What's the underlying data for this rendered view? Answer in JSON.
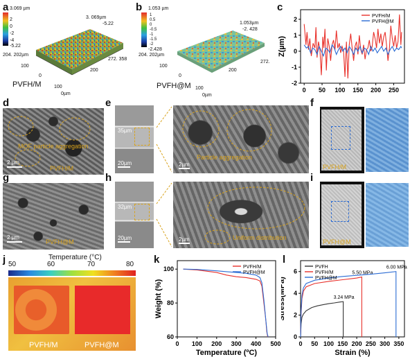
{
  "panels": {
    "a": {
      "letter": "a",
      "label": "PVFH/M",
      "cb_max": "3.069 µm",
      "cb_ticks": [
        "2",
        "0",
        "-2",
        "-4"
      ],
      "cb_min": "-5.22",
      "peak_label": "3. 069µm",
      "peak_min": "-5.22",
      "y_extent": "204. 202µm",
      "x_extent": "272. 358",
      "tick_100": "100",
      "tick_200": "200",
      "tick_0": "0",
      "unit_0": "0µm"
    },
    "b": {
      "letter": "b",
      "label": "PVFH@M",
      "cb_max": "1.053 µm",
      "cb_ticks": [
        "1",
        "0.5",
        "0",
        "-0.5",
        "-1",
        "-1.5",
        "-2"
      ],
      "cb_min": "-2.428",
      "peak_label": "1.053µm",
      "peak_min": "-2. 428",
      "y_extent": "204. 202µm",
      "x_extent": "272.",
      "tick_100": "100",
      "tick_200": "200",
      "tick_0": "0",
      "unit_0": "0µm"
    },
    "c": {
      "letter": "c"
    },
    "d": {
      "letter": "d",
      "annot": "MOF particle aggregation",
      "scale": "2 µm",
      "sample": "PVFH/M"
    },
    "e": {
      "letter": "e",
      "thickness": "35µm",
      "scale_left": "20µm",
      "scale_right": "2µm",
      "annot": "Particle aggregation"
    },
    "f": {
      "letter": "f",
      "sample": "PVFH/M"
    },
    "g": {
      "letter": "g",
      "scale": "2 µm",
      "sample": "PVFH@M"
    },
    "h": {
      "letter": "h",
      "thickness": "32µm",
      "scale_left": "20µm",
      "scale_right": "2µm",
      "annot": "Uniform distribution"
    },
    "i": {
      "letter": "i",
      "sample": "PVFH@M"
    },
    "j": {
      "letter": "j",
      "bar_title": "Temperature (°C)",
      "ticks": [
        "50",
        "60",
        "70",
        "80"
      ],
      "left_label": "PVFH/M",
      "right_label": "PVFH@M"
    },
    "k": {
      "letter": "k"
    },
    "l": {
      "letter": "l"
    }
  },
  "chart_data": [
    {
      "id": "c",
      "type": "line",
      "xlabel": "",
      "ylabel": "Z(µm)",
      "xlim": [
        -10,
        280
      ],
      "ylim": [
        -2,
        2.6
      ],
      "xticks": [
        0,
        50,
        100,
        150,
        200,
        250
      ],
      "yticks": [
        -2,
        -1,
        0,
        1,
        2
      ],
      "legend_position": "top-right",
      "series": [
        {
          "name": "PVFH/M",
          "color": "#e8302a",
          "x": [
            0,
            5,
            8,
            12,
            16,
            20,
            25,
            30,
            33,
            36,
            40,
            44,
            48,
            52,
            55,
            58,
            62,
            66,
            70,
            74,
            78,
            82,
            86,
            90,
            94,
            98,
            102,
            106,
            110,
            114,
            118,
            122,
            126,
            130,
            134,
            138,
            142,
            146,
            150,
            154,
            158,
            162,
            166,
            170,
            174,
            178,
            182,
            186,
            190,
            194,
            198,
            202,
            206,
            210,
            214,
            218,
            222,
            226,
            230,
            234,
            238,
            242,
            246,
            250,
            254,
            258,
            262,
            266,
            270,
            272
          ],
          "y": [
            1.7,
            0.4,
            1.2,
            0.1,
            0.8,
            -0.3,
            0.5,
            0.2,
            1.5,
            -0.4,
            0.6,
            0.1,
            -1.5,
            0.9,
            0.2,
            1.4,
            -1.2,
            0.8,
            0.3,
            -0.6,
            0.4,
            0.7,
            0.1,
            1.3,
            0.2,
            0.5,
            -0.1,
            0.3,
            0.0,
            -1.6,
            0.6,
            -1.7,
            0.4,
            1.1,
            0.2,
            -0.6,
            0.3,
            0.6,
            -0.2,
            1.0,
            0.1,
            -0.2,
            0.4,
            -0.5,
            0.1,
            0.2,
            0.7,
            0.0,
            0.3,
            1.2,
            0.8,
            0.2,
            1.4,
            0.5,
            1.1,
            0.3,
            0.9,
            1.2,
            0.4,
            -0.6,
            0.2,
            1.6,
            0.8,
            0.3,
            1.0,
            0.2,
            0.6,
            2.3,
            0.4,
            1.2
          ]
        },
        {
          "name": "PVFH@M",
          "color": "#2a6bd4",
          "x": [
            0,
            6,
            12,
            18,
            24,
            30,
            36,
            42,
            48,
            54,
            60,
            66,
            72,
            78,
            84,
            90,
            96,
            102,
            108,
            114,
            120,
            126,
            132,
            138,
            144,
            150,
            156,
            162,
            168,
            174,
            180,
            186,
            192,
            198,
            204,
            210,
            216,
            222,
            228,
            234,
            240,
            246,
            252,
            258,
            264,
            270,
            272
          ],
          "y": [
            0.4,
            0.2,
            0.3,
            -0.1,
            0.2,
            0.1,
            -0.2,
            0.3,
            0.0,
            -0.3,
            0.2,
            0.1,
            -0.1,
            0.4,
            0.2,
            -0.2,
            0.1,
            0.3,
            0.0,
            0.2,
            -0.1,
            0.3,
            0.1,
            -0.2,
            0.2,
            0.0,
            0.3,
            -0.1,
            0.2,
            0.1,
            -0.2,
            0.3,
            0.0,
            0.2,
            -0.1,
            0.1,
            0.3,
            0.0,
            0.2,
            -0.2,
            0.1,
            0.3,
            0.0,
            0.2,
            0.1,
            0.3,
            0.2
          ]
        }
      ]
    },
    {
      "id": "k",
      "type": "line",
      "xlabel": "Temperature (ºC)",
      "ylabel": "Weight (%)",
      "xlim": [
        0,
        500
      ],
      "ylim": [
        60,
        105
      ],
      "xticks": [
        0,
        100,
        200,
        300,
        400,
        500
      ],
      "yticks": [
        60,
        80,
        100
      ],
      "legend_position": "top-right",
      "series": [
        {
          "name": "PVFH/M",
          "color": "#e8302a",
          "x": [
            30,
            100,
            200,
            250,
            300,
            350,
            400,
            420,
            430,
            440,
            450,
            455,
            460
          ],
          "y": [
            100,
            99.5,
            98,
            96.5,
            95.5,
            95,
            94,
            93,
            90,
            80,
            70,
            63,
            60
          ]
        },
        {
          "name": "PVFH@M",
          "color": "#2a6bd4",
          "x": [
            30,
            100,
            200,
            250,
            300,
            350,
            400,
            420,
            430,
            440,
            450,
            457,
            462
          ],
          "y": [
            100,
            99.8,
            99,
            98.5,
            98,
            97.5,
            96.5,
            95,
            92,
            82,
            70,
            62,
            60
          ]
        }
      ]
    },
    {
      "id": "l",
      "type": "line",
      "xlabel": "Strain (%)",
      "ylabel": "Stress(MPa)",
      "xlim": [
        0,
        370
      ],
      "ylim": [
        0,
        7
      ],
      "xticks": [
        0,
        50,
        100,
        150,
        200,
        250,
        300,
        350
      ],
      "yticks": [
        0,
        2,
        4,
        6
      ],
      "legend_position": "top-left",
      "series": [
        {
          "name": "PVFH",
          "color": "#333333",
          "x": [
            0,
            2,
            5,
            10,
            20,
            40,
            60,
            80,
            100,
            120,
            140,
            152,
            152
          ],
          "y": [
            0,
            1.2,
            1.8,
            2.1,
            2.4,
            2.7,
            2.85,
            2.95,
            3.05,
            3.12,
            3.2,
            3.24,
            0
          ],
          "end_label": "3.24 MPa"
        },
        {
          "name": "PVFH/M",
          "color": "#e8302a",
          "x": [
            0,
            2,
            5,
            10,
            20,
            50,
            100,
            150,
            200,
            218,
            218
          ],
          "y": [
            0,
            2.2,
            3.5,
            4.2,
            4.6,
            4.9,
            5.1,
            5.25,
            5.4,
            5.5,
            0
          ],
          "end_label": "5.50 MPa"
        },
        {
          "name": "PVFH@M",
          "color": "#2a6bd4",
          "x": [
            0,
            2,
            5,
            10,
            20,
            50,
            100,
            150,
            200,
            250,
            300,
            340,
            340
          ],
          "y": [
            0,
            2.5,
            3.8,
            4.5,
            4.9,
            5.2,
            5.4,
            5.55,
            5.65,
            5.75,
            5.88,
            6.0,
            0
          ],
          "end_label": "6.00 MPa"
        }
      ]
    }
  ]
}
